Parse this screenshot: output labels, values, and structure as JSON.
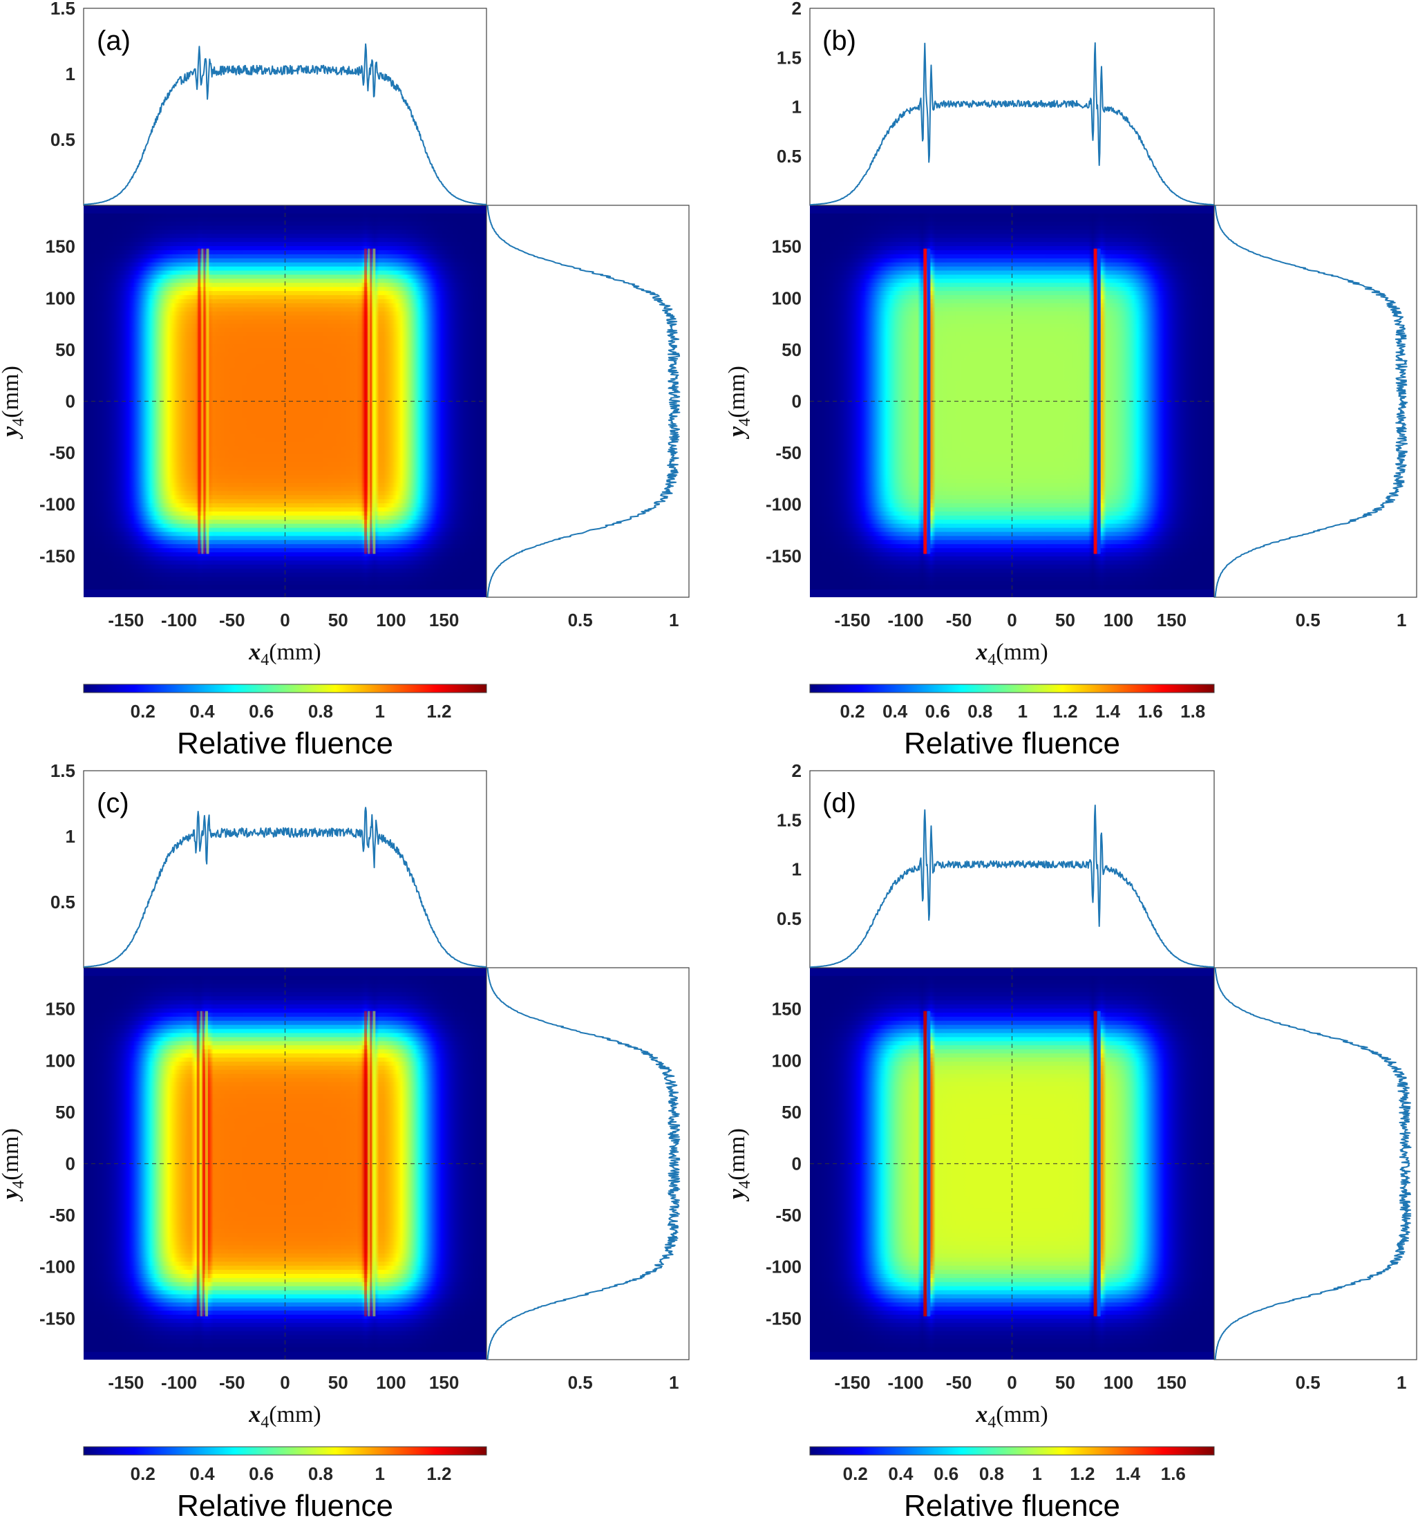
{
  "chart_data": [
    {
      "panel": "(a)",
      "type": "heatmap",
      "colormap": "jet",
      "x_label": {
        "var": "x",
        "sub": "4",
        "unit": "(mm)"
      },
      "y_label": {
        "var": "y",
        "sub": "4",
        "unit": "(mm)"
      },
      "xlim": [
        -190,
        190
      ],
      "ylim": [
        -190,
        190
      ],
      "x_ticks": [
        "-150",
        "-100",
        "-50",
        "0",
        "50",
        "100",
        "150"
      ],
      "y_ticks": [
        "150",
        "100",
        "50",
        "0",
        "-50",
        "-100",
        "-150"
      ],
      "beam": {
        "half_width_mm": 140,
        "plateau_fluence": 1.03,
        "edge_width_mm": 12
      },
      "modulation_lines_mm": [
        -81,
        -73,
        76,
        84
      ],
      "modulation_amplitude": 0.2,
      "top_profile": {
        "ylim": [
          0,
          1.5
        ],
        "ticks": [
          "0.5",
          "1",
          "1.5"
        ]
      },
      "side_profile": {
        "xlim": [
          0,
          1.08
        ],
        "ticks": [
          "0.5",
          "1"
        ]
      },
      "colorbar": {
        "range": [
          0,
          1.36
        ],
        "ticks": [
          "0.2",
          "0.4",
          "0.6",
          "0.8",
          "1",
          "1.2"
        ],
        "title": "Relative fluence"
      }
    },
    {
      "panel": "(b)",
      "type": "heatmap",
      "colormap": "jet",
      "x_label": {
        "var": "x",
        "sub": "4",
        "unit": "(mm)"
      },
      "y_label": {
        "var": "y",
        "sub": "4",
        "unit": "(mm)"
      },
      "xlim": [
        -190,
        190
      ],
      "ylim": [
        -190,
        190
      ],
      "x_ticks": [
        "-150",
        "-100",
        "-50",
        "0",
        "50",
        "100",
        "150"
      ],
      "y_ticks": [
        "150",
        "100",
        "50",
        "0",
        "-50",
        "-100",
        "-150"
      ],
      "beam": {
        "half_width_mm": 140,
        "plateau_fluence": 1.03,
        "edge_width_mm": 12
      },
      "modulation_lines_mm": [
        -82,
        -78,
        78,
        82
      ],
      "modulation_amplitude": 0.7,
      "top_profile": {
        "ylim": [
          0,
          2
        ],
        "ticks": [
          "0.5",
          "1",
          "1.5",
          "2"
        ]
      },
      "side_profile": {
        "xlim": [
          0,
          1.08
        ],
        "ticks": [
          "0.5",
          "1"
        ]
      },
      "colorbar": {
        "range": [
          0,
          1.9
        ],
        "ticks": [
          "0.2",
          "0.4",
          "0.6",
          "0.8",
          "1",
          "1.2",
          "1.4",
          "1.6",
          "1.8"
        ],
        "title": "Relative fluence"
      }
    },
    {
      "panel": "(c)",
      "type": "heatmap",
      "colormap": "jet",
      "x_label": {
        "var": "x",
        "sub": "4",
        "unit": "(mm)"
      },
      "y_label": {
        "var": "y",
        "sub": "4",
        "unit": "(mm)"
      },
      "xlim": [
        -190,
        190
      ],
      "ylim": [
        -190,
        190
      ],
      "x_ticks": [
        "-150",
        "-100",
        "-50",
        "0",
        "50",
        "100",
        "150"
      ],
      "y_ticks": [
        "150",
        "100",
        "50",
        "0",
        "-50",
        "-100",
        "-150"
      ],
      "beam": {
        "half_width_mm": 140,
        "plateau_fluence": 1.03,
        "edge_width_mm": 12
      },
      "modulation_lines_mm": [
        -82,
        -74,
        76,
        84
      ],
      "modulation_amplitude": 0.22,
      "top_profile": {
        "ylim": [
          0,
          1.5
        ],
        "ticks": [
          "0.5",
          "1",
          "1.5"
        ]
      },
      "side_profile": {
        "xlim": [
          0,
          1.08
        ],
        "ticks": [
          "0.5",
          "1"
        ]
      },
      "colorbar": {
        "range": [
          0,
          1.36
        ],
        "ticks": [
          "0.2",
          "0.4",
          "0.6",
          "0.8",
          "1",
          "1.2"
        ],
        "title": "Relative fluence"
      }
    },
    {
      "panel": "(d)",
      "type": "heatmap",
      "colormap": "jet",
      "x_label": {
        "var": "x",
        "sub": "4",
        "unit": "(mm)"
      },
      "y_label": {
        "var": "y",
        "sub": "4",
        "unit": "(mm)"
      },
      "xlim": [
        -190,
        190
      ],
      "ylim": [
        -190,
        190
      ],
      "x_ticks": [
        "-150",
        "-100",
        "-50",
        "0",
        "50",
        "100",
        "150"
      ],
      "y_ticks": [
        "150",
        "100",
        "50",
        "0",
        "-50",
        "-100",
        "-150"
      ],
      "beam": {
        "half_width_mm": 140,
        "plateau_fluence": 1.05,
        "edge_width_mm": 12
      },
      "modulation_lines_mm": [
        -82,
        -78,
        78,
        82
      ],
      "modulation_amplitude": 0.68,
      "top_profile": {
        "ylim": [
          0,
          2
        ],
        "ticks": [
          "0.5",
          "1",
          "1.5",
          "2"
        ]
      },
      "side_profile": {
        "xlim": [
          0,
          1.08
        ],
        "ticks": [
          "0.5",
          "1"
        ]
      },
      "colorbar": {
        "range": [
          0,
          1.78
        ],
        "ticks": [
          "0.2",
          "0.4",
          "0.6",
          "0.8",
          "1",
          "1.2",
          "1.4",
          "1.6"
        ],
        "title": "Relative fluence"
      }
    }
  ]
}
